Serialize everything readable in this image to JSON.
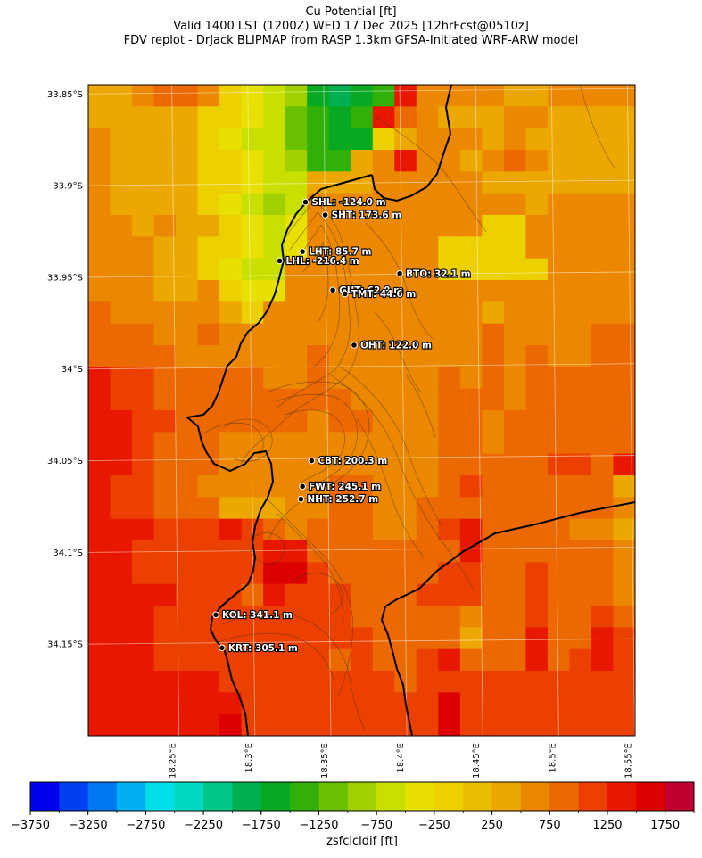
{
  "chart_data": {
    "type": "heatmap",
    "title": "Cu Potential [ft]",
    "subtitle_line1": "Valid 1400 LST (1200Z) WED 17 Dec 2025 [12hrFcst@0510z]",
    "subtitle_line2": "FDV replot - DrJack BLIPMAP from RASP 1.3km GFSA-Initiated WRF-ARW model",
    "xlabel": "",
    "ylabel": "",
    "x_range": [
      18.195,
      18.555
    ],
    "y_range": [
      -34.2,
      -33.845
    ],
    "x_ticks": [
      {
        "value": 18.25,
        "label": "18.25°E"
      },
      {
        "value": 18.3,
        "label": "18.3°E"
      },
      {
        "value": 18.35,
        "label": "18.35°E"
      },
      {
        "value": 18.4,
        "label": "18.4°E"
      },
      {
        "value": 18.45,
        "label": "18.45°E"
      },
      {
        "value": 18.5,
        "label": "18.5°E"
      },
      {
        "value": 18.55,
        "label": "18.55°E"
      }
    ],
    "y_ticks": [
      {
        "value": -33.85,
        "label": "33.85°S"
      },
      {
        "value": -33.9,
        "label": "33.9°S"
      },
      {
        "value": -33.95,
        "label": "33.95°S"
      },
      {
        "value": -34.0,
        "label": "34°S"
      },
      {
        "value": -34.05,
        "label": "34.05°S"
      },
      {
        "value": -34.1,
        "label": "34.1°S"
      },
      {
        "value": -34.15,
        "label": "34.15°S"
      }
    ],
    "stations": [
      {
        "label": "SHL: -124.0 m",
        "lon": 18.338,
        "lat": -33.909
      },
      {
        "label": "SHT: 173.6 m",
        "lon": 18.351,
        "lat": -33.916
      },
      {
        "label": "LHT: 85.7 m",
        "lon": 18.336,
        "lat": -33.936
      },
      {
        "label": "LHL: -216.4 m",
        "lon": 18.321,
        "lat": -33.941
      },
      {
        "label": "BTO: 32.1 m",
        "lon": 18.4,
        "lat": -33.948
      },
      {
        "label": "GUT: 62.9 m",
        "lon": 18.356,
        "lat": -33.957
      },
      {
        "label": "TMT: 44.6 m",
        "lon": 18.364,
        "lat": -33.959
      },
      {
        "label": "OHT: 122.0 m",
        "lon": 18.37,
        "lat": -33.987
      },
      {
        "label": "CBT: 200.3 m",
        "lon": 18.342,
        "lat": -34.05
      },
      {
        "label": "FWT: 245.1 m",
        "lon": 18.336,
        "lat": -34.064
      },
      {
        "label": "NHT: 252.7 m",
        "lon": 18.335,
        "lat": -34.071
      },
      {
        "label": "KOL: 341.1 m",
        "lon": 18.279,
        "lat": -34.134
      },
      {
        "label": "KRT: 305.1 m",
        "lon": 18.283,
        "lat": -34.152
      }
    ],
    "grid_values_ft": [
      [
        250,
        250,
        500,
        750,
        750,
        500,
        -250,
        -500,
        -750,
        -1000,
        -1750,
        -2000,
        -1750,
        -1500,
        1250,
        500,
        500,
        500,
        500,
        250,
        250,
        500,
        500,
        500,
        500
      ],
      [
        250,
        250,
        250,
        250,
        250,
        -250,
        -250,
        -500,
        -750,
        -1250,
        -1500,
        -1750,
        -1500,
        1250,
        750,
        500,
        250,
        250,
        250,
        500,
        500,
        250,
        250,
        250,
        250
      ],
      [
        500,
        250,
        250,
        250,
        250,
        -250,
        -500,
        -750,
        -750,
        -1250,
        -1500,
        -1750,
        -1750,
        -250,
        250,
        500,
        500,
        500,
        250,
        500,
        250,
        250,
        250,
        250,
        250
      ],
      [
        500,
        250,
        250,
        250,
        250,
        -250,
        -250,
        -500,
        -750,
        -1000,
        -1500,
        -1500,
        250,
        500,
        1250,
        500,
        500,
        250,
        500,
        750,
        500,
        250,
        250,
        250,
        250
      ],
      [
        500,
        250,
        250,
        250,
        250,
        -250,
        -250,
        -500,
        -750,
        -750,
        250,
        250,
        250,
        500,
        500,
        500,
        500,
        500,
        250,
        250,
        250,
        250,
        250,
        250,
        250
      ],
      [
        500,
        250,
        250,
        250,
        250,
        -250,
        -500,
        -750,
        -1000,
        -750,
        500,
        500,
        500,
        500,
        500,
        500,
        500,
        500,
        500,
        500,
        250,
        500,
        500,
        500,
        500
      ],
      [
        500,
        500,
        250,
        500,
        250,
        250,
        -250,
        -500,
        -750,
        -500,
        500,
        500,
        500,
        500,
        500,
        500,
        500,
        500,
        -250,
        -250,
        500,
        500,
        500,
        500,
        500
      ],
      [
        500,
        500,
        500,
        250,
        250,
        -250,
        -250,
        -500,
        -750,
        -500,
        500,
        500,
        500,
        500,
        500,
        500,
        -250,
        -250,
        -250,
        -250,
        500,
        500,
        500,
        500,
        500
      ],
      [
        500,
        500,
        500,
        250,
        250,
        -250,
        -500,
        -750,
        -750,
        500,
        500,
        500,
        500,
        500,
        500,
        500,
        -250,
        -250,
        -250,
        -250,
        -250,
        500,
        500,
        500,
        500
      ],
      [
        500,
        500,
        500,
        250,
        250,
        500,
        -250,
        -500,
        -500,
        500,
        500,
        500,
        500,
        500,
        500,
        500,
        500,
        500,
        500,
        500,
        500,
        500,
        500,
        500,
        500
      ],
      [
        750,
        500,
        500,
        500,
        500,
        500,
        250,
        -250,
        500,
        500,
        500,
        500,
        500,
        500,
        500,
        500,
        500,
        500,
        250,
        500,
        500,
        500,
        500,
        500,
        500
      ],
      [
        750,
        750,
        750,
        500,
        500,
        750,
        500,
        500,
        500,
        500,
        500,
        500,
        500,
        500,
        500,
        500,
        500,
        500,
        750,
        500,
        500,
        500,
        500,
        750,
        750
      ],
      [
        750,
        750,
        750,
        750,
        500,
        500,
        500,
        500,
        500,
        500,
        750,
        500,
        500,
        500,
        500,
        500,
        500,
        500,
        750,
        500,
        750,
        500,
        500,
        750,
        750
      ],
      [
        1250,
        1000,
        1000,
        750,
        750,
        750,
        750,
        750,
        500,
        500,
        750,
        500,
        500,
        500,
        500,
        500,
        750,
        500,
        750,
        500,
        750,
        750,
        750,
        750,
        750
      ],
      [
        1250,
        1000,
        1000,
        750,
        750,
        750,
        750,
        750,
        750,
        750,
        750,
        750,
        500,
        500,
        500,
        500,
        750,
        750,
        750,
        500,
        750,
        750,
        750,
        750,
        750
      ],
      [
        1250,
        1250,
        1000,
        1000,
        750,
        750,
        750,
        750,
        750,
        750,
        500,
        750,
        750,
        500,
        500,
        500,
        750,
        750,
        500,
        750,
        750,
        750,
        750,
        750,
        750
      ],
      [
        1250,
        1250,
        1000,
        750,
        750,
        750,
        500,
        500,
        500,
        500,
        500,
        500,
        500,
        500,
        500,
        500,
        750,
        750,
        500,
        750,
        750,
        750,
        750,
        750,
        750
      ],
      [
        1250,
        1250,
        1000,
        750,
        750,
        750,
        500,
        500,
        500,
        500,
        500,
        500,
        500,
        500,
        500,
        500,
        750,
        750,
        750,
        750,
        750,
        1000,
        1000,
        750,
        1250
      ],
      [
        1250,
        1000,
        1000,
        750,
        750,
        500,
        500,
        500,
        500,
        500,
        500,
        750,
        750,
        500,
        500,
        500,
        750,
        1000,
        750,
        750,
        750,
        750,
        750,
        750,
        250
      ],
      [
        1250,
        1000,
        1000,
        750,
        750,
        750,
        250,
        250,
        250,
        500,
        500,
        750,
        750,
        500,
        500,
        750,
        750,
        750,
        750,
        750,
        750,
        750,
        750,
        750,
        500
      ],
      [
        1250,
        1250,
        1250,
        1000,
        1000,
        1000,
        1250,
        1000,
        750,
        500,
        750,
        750,
        750,
        500,
        500,
        750,
        1000,
        1250,
        750,
        750,
        750,
        750,
        500,
        500,
        250
      ],
      [
        1250,
        1250,
        1000,
        1000,
        1000,
        1000,
        1000,
        1000,
        1250,
        1250,
        750,
        750,
        750,
        750,
        750,
        750,
        750,
        1250,
        750,
        750,
        750,
        750,
        750,
        750,
        500
      ],
      [
        1250,
        1250,
        1000,
        1000,
        1000,
        1000,
        1000,
        1000,
        1500,
        1500,
        1000,
        750,
        750,
        750,
        750,
        750,
        1000,
        1000,
        750,
        750,
        1000,
        750,
        750,
        750,
        500
      ],
      [
        1250,
        1250,
        1250,
        1250,
        1000,
        1000,
        1000,
        750,
        1250,
        1000,
        1000,
        1000,
        750,
        750,
        750,
        1000,
        1000,
        1000,
        750,
        750,
        1000,
        750,
        750,
        750,
        500
      ],
      [
        1250,
        1250,
        1250,
        1000,
        1000,
        1000,
        1000,
        1000,
        1000,
        1000,
        1000,
        1000,
        750,
        750,
        750,
        750,
        750,
        500,
        750,
        750,
        1000,
        750,
        750,
        1000,
        750
      ],
      [
        1250,
        1250,
        1250,
        1000,
        1000,
        1000,
        1000,
        1000,
        1000,
        1000,
        1000,
        1000,
        1000,
        750,
        750,
        750,
        750,
        250,
        750,
        750,
        1250,
        750,
        750,
        1250,
        1000
      ],
      [
        1250,
        1250,
        1250,
        1000,
        1000,
        1000,
        1000,
        1000,
        1000,
        1000,
        1000,
        750,
        1000,
        750,
        750,
        1000,
        1250,
        750,
        750,
        750,
        1250,
        750,
        1000,
        1250,
        1000
      ],
      [
        1250,
        1250,
        1250,
        1250,
        1250,
        1250,
        1000,
        1000,
        1000,
        1000,
        1000,
        1000,
        1000,
        1000,
        750,
        1000,
        1000,
        1000,
        1000,
        1000,
        1000,
        1000,
        1000,
        1000,
        1000
      ],
      [
        1250,
        1250,
        1250,
        1250,
        1250,
        1250,
        1250,
        1000,
        1000,
        1000,
        1000,
        1000,
        1000,
        1000,
        1000,
        1000,
        1500,
        1000,
        1000,
        1000,
        1000,
        1000,
        1000,
        1000,
        1000
      ],
      [
        1250,
        1250,
        1250,
        1250,
        1250,
        1250,
        1500,
        1000,
        1000,
        1000,
        1000,
        1000,
        1000,
        1000,
        1000,
        1000,
        1500,
        1000,
        1000,
        1000,
        1000,
        1000,
        1000,
        1000,
        1000
      ]
    ],
    "colorbar": {
      "label": "zsfclcldif [ft]",
      "bounds": [
        -3750,
        -3500,
        -3250,
        -3000,
        -2750,
        -2500,
        -2250,
        -2000,
        -1750,
        -1500,
        -1250,
        -1000,
        -750,
        -500,
        -250,
        0,
        250,
        500,
        750,
        1000,
        1250,
        1500,
        1750,
        2000
      ],
      "colors": [
        "#0000f0",
        "#0040f0",
        "#0078f0",
        "#00b0f0",
        "#00e0e8",
        "#00d8c0",
        "#00c888",
        "#00b050",
        "#08a820",
        "#30b008",
        "#68c000",
        "#a0d000",
        "#c8e000",
        "#e8e000",
        "#ecd000",
        "#ecbc00",
        "#eca800",
        "#ec8800",
        "#ec6800",
        "#ec4000",
        "#e81800",
        "#dc0000",
        "#c00030"
      ],
      "tick_values": [
        -3750,
        -3250,
        -2750,
        -2250,
        -1750,
        -1250,
        -750,
        -250,
        250,
        750,
        1250,
        1750
      ],
      "tick_labels": [
        "−3750",
        "−3250",
        "−2750",
        "−2250",
        "−1750",
        "−1250",
        "−750",
        "−250",
        "250",
        "750",
        "1250",
        "1750"
      ]
    },
    "grid": true,
    "legend": "colorbar-bottom"
  }
}
